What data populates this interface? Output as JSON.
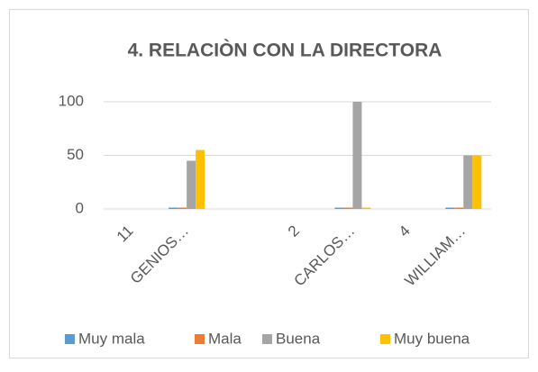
{
  "chart_data": {
    "type": "bar",
    "title": "4. RELACIÒN CON LA DIRECTORA",
    "categories": [
      "11",
      "GENIOS…",
      null,
      "2",
      "CARLOS…",
      "4",
      "WILLIAM…"
    ],
    "series": [
      {
        "name": "Muy mala",
        "color": "#5b9bd5",
        "values": [
          null,
          0,
          null,
          null,
          0,
          null,
          0
        ]
      },
      {
        "name": "Mala",
        "color": "#ed7d31",
        "values": [
          null,
          0,
          null,
          null,
          0,
          null,
          0
        ]
      },
      {
        "name": "Buena",
        "color": "#a5a5a5",
        "values": [
          null,
          45,
          null,
          null,
          100,
          null,
          50
        ]
      },
      {
        "name": "Muy buena",
        "color": "#ffc000",
        "values": [
          null,
          55,
          null,
          null,
          0,
          null,
          50
        ]
      }
    ],
    "ylim": [
      0,
      100
    ],
    "yticks": [
      0,
      50,
      100
    ],
    "grid": true,
    "legend": "bottom"
  }
}
